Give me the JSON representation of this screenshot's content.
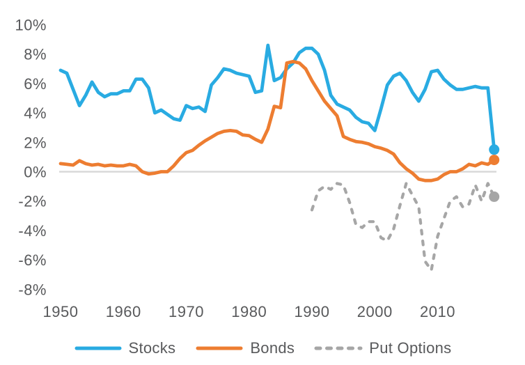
{
  "page": {
    "background": "#ffffff",
    "title": ""
  },
  "chart_data": {
    "type": "line",
    "title": "",
    "xlabel": "",
    "ylabel": "",
    "xlim": [
      1950,
      2019
    ],
    "ylim": [
      -8,
      10
    ],
    "grid": "zero-line-only",
    "zero_line": true,
    "legend_position": "bottom",
    "x_ticks": [
      1950,
      1960,
      1970,
      1980,
      1990,
      2000,
      2010
    ],
    "y_ticks": [
      "10%",
      "8%",
      "6%",
      "4%",
      "2%",
      "0%",
      "-2%",
      "-4%",
      "-6%",
      "-8%"
    ],
    "y_tick_values": [
      10,
      8,
      6,
      4,
      2,
      0,
      -2,
      -4,
      -6,
      -8
    ],
    "colors": {
      "gridline": "#d9d9d9",
      "axis_text": "#58595b"
    },
    "series": [
      {
        "name": "Stocks",
        "slug": "stocks",
        "color": "#29abe2",
        "style": "solid",
        "end_marker": true,
        "start_year": 1950,
        "values": [
          6.9,
          6.7,
          5.6,
          4.5,
          5.2,
          6.1,
          5.4,
          5.1,
          5.3,
          5.3,
          5.5,
          5.5,
          6.3,
          6.3,
          5.7,
          4.0,
          4.2,
          3.9,
          3.6,
          3.5,
          4.5,
          4.3,
          4.4,
          4.1,
          5.9,
          6.4,
          7.0,
          6.9,
          6.7,
          6.6,
          6.5,
          5.4,
          5.5,
          8.6,
          6.2,
          6.4,
          7.0,
          7.4,
          8.1,
          8.4,
          8.4,
          8.0,
          6.9,
          5.2,
          4.6,
          4.4,
          4.2,
          3.7,
          3.4,
          3.3,
          2.8,
          4.3,
          5.9,
          6.5,
          6.7,
          6.2,
          5.4,
          4.8,
          5.6,
          6.8,
          6.9,
          6.3,
          5.9,
          5.6,
          5.6,
          5.7,
          5.8,
          5.7,
          5.7,
          1.5
        ]
      },
      {
        "name": "Bonds",
        "slug": "bonds",
        "color": "#ed7d31",
        "style": "solid",
        "end_marker": true,
        "start_year": 1950,
        "values": [
          0.55,
          0.5,
          0.45,
          0.75,
          0.55,
          0.45,
          0.5,
          0.4,
          0.45,
          0.4,
          0.4,
          0.5,
          0.4,
          0.0,
          -0.15,
          -0.1,
          0.0,
          0.0,
          0.4,
          0.9,
          1.3,
          1.45,
          1.8,
          2.1,
          2.35,
          2.6,
          2.75,
          2.8,
          2.75,
          2.5,
          2.45,
          2.2,
          2.0,
          2.9,
          4.45,
          4.35,
          7.4,
          7.5,
          7.4,
          7.0,
          6.2,
          5.5,
          4.8,
          4.3,
          3.8,
          2.4,
          2.2,
          2.05,
          2.0,
          1.9,
          1.7,
          1.6,
          1.45,
          1.2,
          0.6,
          0.2,
          -0.1,
          -0.5,
          -0.6,
          -0.6,
          -0.5,
          -0.2,
          0.0,
          0.0,
          0.2,
          0.5,
          0.4,
          0.6,
          0.5,
          0.8
        ]
      },
      {
        "name": "Put Options",
        "slug": "put-options",
        "color": "#a6a6a6",
        "style": "dashed",
        "end_marker": true,
        "start_year": 1990,
        "values": [
          -2.6,
          -1.3,
          -1.0,
          -1.2,
          -0.8,
          -0.9,
          -2.1,
          -3.6,
          -3.8,
          -3.4,
          -3.4,
          -4.5,
          -4.7,
          -3.9,
          -2.3,
          -0.8,
          -1.6,
          -2.4,
          -6.1,
          -6.7,
          -4.4,
          -3.2,
          -2.0,
          -1.7,
          -2.4,
          -2.2,
          -0.9,
          -2.0,
          -0.8,
          -1.7
        ]
      }
    ]
  }
}
